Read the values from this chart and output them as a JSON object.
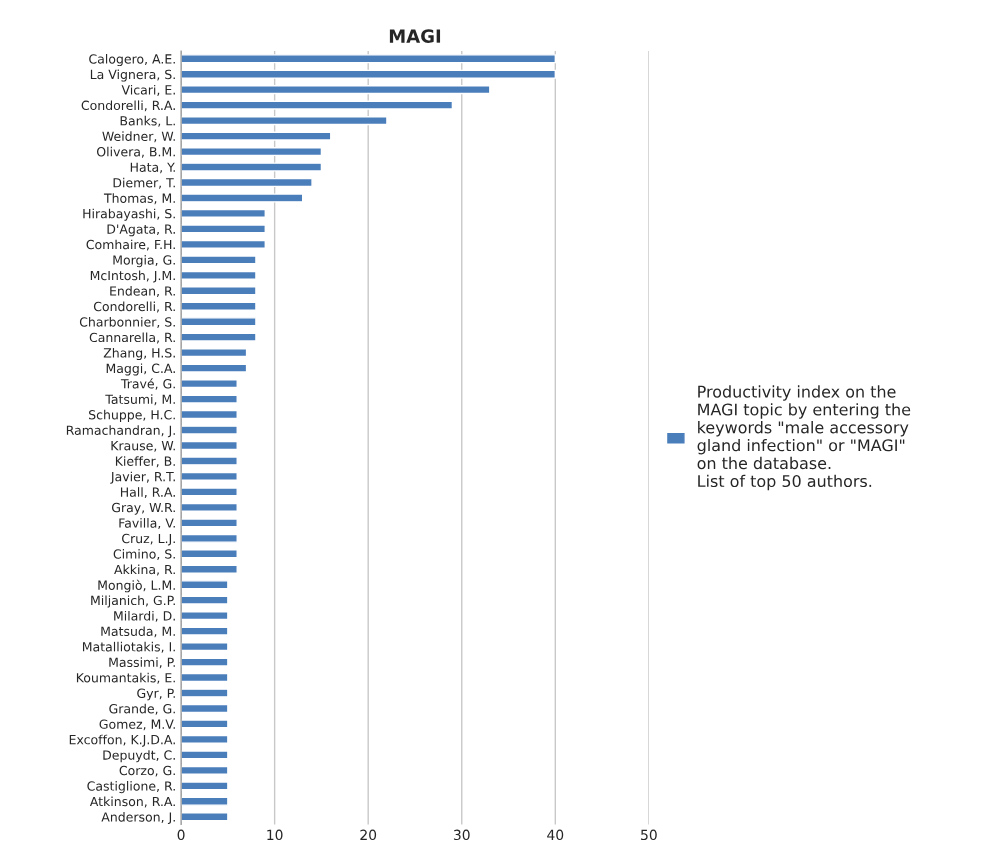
{
  "chart_data": {
    "type": "bar",
    "orientation": "horizontal",
    "title": "MAGI",
    "categories": [
      "Calogero, A.E.",
      "La Vignera, S.",
      "Vicari, E.",
      "Condorelli, R.A.",
      "Banks, L.",
      "Weidner, W.",
      "Olivera, B.M.",
      "Hata, Y.",
      "Diemer, T.",
      "Thomas, M.",
      "Hirabayashi, S.",
      "D'Agata, R.",
      "Comhaire, F.H.",
      "Morgia, G.",
      "McIntosh, J.M.",
      "Endean, R.",
      "Condorelli, R.",
      "Charbonnier, S.",
      "Cannarella, R.",
      "Zhang, H.S.",
      "Maggi, C.A.",
      "Travé, G.",
      "Tatsumi, M.",
      "Schuppe, H.C.",
      "Ramachandran, J.",
      "Krause, W.",
      "Kieffer, B.",
      "Javier, R.T.",
      "Hall, R.A.",
      "Gray, W.R.",
      "Favilla, V.",
      "Cruz, L.J.",
      "Cimino, S.",
      "Akkina, R.",
      "Mongiò, L.M.",
      "Miljanich, G.P.",
      "Milardi, D.",
      "Matsuda, M.",
      "Matalliotakis, I.",
      "Massimi, P.",
      "Koumantakis, E.",
      "Gyr, P.",
      "Grande, G.",
      "Gomez, M.V.",
      "Excoffon, K.J.D.A.",
      "Depuydt, C.",
      "Corzo, G.",
      "Castiglione, R.",
      "Atkinson, R.A.",
      "Anderson, J."
    ],
    "series": [
      {
        "name": "Productivity index on the\nMAGI topic by entering the\nkeywords \"male accessory\ngland infection\" or \"MAGI\"\non the database.\nList of top 50 authors.",
        "color": "#4a7ebb",
        "values": [
          40,
          40,
          33,
          29,
          22,
          16,
          15,
          15,
          14,
          13,
          9,
          9,
          9,
          8,
          8,
          8,
          8,
          8,
          8,
          7,
          7,
          6,
          6,
          6,
          6,
          6,
          6,
          6,
          6,
          6,
          6,
          6,
          6,
          6,
          5,
          5,
          5,
          5,
          5,
          5,
          5,
          5,
          5,
          5,
          5,
          5,
          5,
          5,
          5,
          5
        ]
      }
    ],
    "xlim": [
      0,
      50
    ],
    "xticks": [
      0,
      10,
      20,
      30,
      40,
      50
    ],
    "grid": "x",
    "legend": "right"
  }
}
